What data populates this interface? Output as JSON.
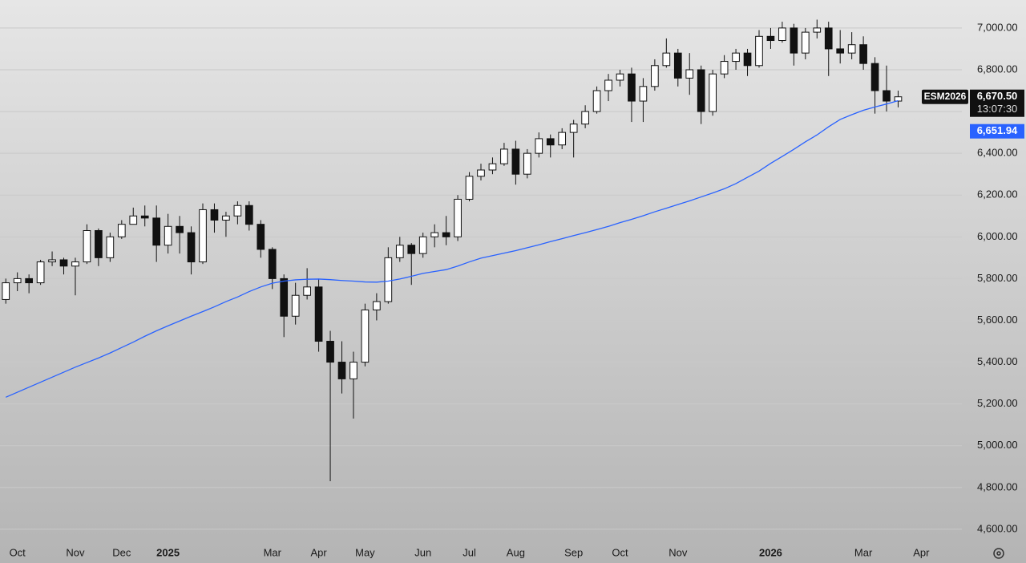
{
  "chart_data": {
    "type": "candlestick",
    "categories": [
      null,
      "Oct",
      null,
      null,
      null,
      null,
      "Nov",
      null,
      null,
      null,
      "Dec",
      null,
      null,
      null,
      "2025",
      null,
      null,
      null,
      null,
      null,
      null,
      null,
      null,
      "Mar",
      null,
      null,
      null,
      "Apr",
      null,
      null,
      null,
      "May",
      null,
      null,
      null,
      null,
      "Jun",
      null,
      null,
      null,
      "Jul",
      null,
      null,
      null,
      "Aug",
      null,
      null,
      null,
      null,
      "Sep",
      null,
      null,
      null,
      "Oct",
      null,
      null,
      null,
      null,
      "Nov",
      null,
      null,
      null,
      null,
      null,
      null,
      null,
      "2026",
      null,
      null,
      null,
      null,
      null,
      null,
      null,
      "Mar",
      null,
      null,
      null,
      null,
      "Apr",
      null,
      null,
      null
    ],
    "open": [
      5700,
      5780,
      5800,
      5780,
      5880,
      5890,
      5860,
      5880,
      6030,
      5900,
      6000,
      6060,
      6100,
      6090,
      5960,
      6050,
      6020,
      5880,
      6130,
      6080,
      6100,
      6150,
      6060,
      5940,
      5800,
      5620,
      5720,
      5760,
      5500,
      5400,
      5320,
      5400,
      5650,
      5690,
      5900,
      5960,
      5920,
      6000,
      6020,
      6000,
      6180,
      6290,
      6320,
      6350,
      6420,
      6300,
      6400,
      6470,
      6440,
      6500,
      6540,
      6600,
      6700,
      6750,
      6780,
      6650,
      6720,
      6820,
      6880,
      6760,
      6800,
      6600,
      6780,
      6840,
      6880,
      6820,
      6960,
      6940,
      7000,
      6880,
      6980,
      7000,
      6900,
      6880,
      6920,
      6830,
      6700,
      6650,
      null,
      null,
      null,
      null,
      null
    ],
    "high": [
      5800,
      5830,
      5820,
      5890,
      5930,
      5900,
      5900,
      6060,
      6040,
      6020,
      6080,
      6140,
      6150,
      6150,
      6110,
      6100,
      6050,
      6160,
      6160,
      6120,
      6170,
      6170,
      6080,
      5950,
      5820,
      5780,
      5850,
      5800,
      5550,
      5500,
      5450,
      5680,
      5730,
      5950,
      6000,
      5970,
      6020,
      6060,
      6100,
      6200,
      6310,
      6350,
      6380,
      6450,
      6460,
      6420,
      6500,
      6490,
      6520,
      6560,
      6630,
      6720,
      6780,
      6800,
      6810,
      6760,
      6850,
      6950,
      6900,
      6880,
      6820,
      6800,
      6870,
      6900,
      6900,
      6990,
      7000,
      7030,
      7020,
      7000,
      7040,
      7030,
      6990,
      6980,
      6960,
      6860,
      6820,
      6700,
      null,
      null,
      null,
      null,
      null
    ],
    "low": [
      5680,
      5740,
      5730,
      5770,
      5860,
      5820,
      5720,
      5870,
      5860,
      5880,
      5990,
      6060,
      6050,
      5880,
      5920,
      5920,
      5820,
      5870,
      6020,
      6000,
      6060,
      6030,
      5900,
      5750,
      5520,
      5580,
      5700,
      5450,
      4830,
      5250,
      5130,
      5380,
      5600,
      5680,
      5880,
      5770,
      5900,
      5950,
      5960,
      5980,
      6170,
      6270,
      6300,
      6340,
      6250,
      6280,
      6380,
      6380,
      6420,
      6380,
      6520,
      6590,
      6650,
      6720,
      6550,
      6550,
      6700,
      6810,
      6720,
      6680,
      6540,
      6580,
      6760,
      6800,
      6770,
      6810,
      6900,
      6930,
      6820,
      6850,
      6950,
      6770,
      6830,
      6850,
      6800,
      6590,
      6600,
      6620,
      null,
      null,
      null,
      null,
      null
    ],
    "close": [
      5780,
      5800,
      5780,
      5880,
      5890,
      5860,
      5880,
      6030,
      5900,
      6000,
      6060,
      6100,
      6090,
      5960,
      6050,
      6020,
      5880,
      6130,
      6080,
      6100,
      6150,
      6060,
      5940,
      5800,
      5620,
      5720,
      5760,
      5500,
      5400,
      5320,
      5400,
      5650,
      5690,
      5900,
      5960,
      5920,
      6000,
      6020,
      6000,
      6180,
      6290,
      6320,
      6350,
      6420,
      6300,
      6400,
      6470,
      6440,
      6500,
      6540,
      6600,
      6700,
      6750,
      6780,
      6650,
      6720,
      6820,
      6880,
      6760,
      6800,
      6600,
      6780,
      6840,
      6880,
      6820,
      6960,
      6940,
      7000,
      6880,
      6980,
      7000,
      6900,
      6880,
      6920,
      6830,
      6700,
      6650,
      6670.5,
      null,
      null,
      null,
      null,
      null
    ],
    "up_color": "#ffffff",
    "down_color": "#111111",
    "wick_color": "#111111",
    "overlay": {
      "type": "line",
      "color": "#2962ff",
      "values": [
        5232,
        5256,
        5280,
        5304,
        5328,
        5352,
        5376,
        5398,
        5420,
        5444,
        5470,
        5496,
        5524,
        5550,
        5574,
        5597,
        5620,
        5642,
        5665,
        5690,
        5712,
        5738,
        5760,
        5778,
        5788,
        5794,
        5797,
        5798,
        5795,
        5791,
        5788,
        5784,
        5783,
        5788,
        5798,
        5811,
        5825,
        5834,
        5843,
        5860,
        5880,
        5898,
        5910,
        5922,
        5934,
        5948,
        5962,
        5977,
        5991,
        6006,
        6020,
        6035,
        6050,
        6068,
        6084,
        6101,
        6120,
        6137,
        6155,
        6172,
        6191,
        6210,
        6230,
        6255,
        6285,
        6315,
        6352,
        6385,
        6419,
        6455,
        6488,
        6527,
        6562,
        6585,
        6606,
        6622,
        6636,
        6651.94,
        null,
        null,
        null,
        null,
        null
      ],
      "last_label": {
        "value": 6651.94,
        "label": "6,651.94"
      }
    },
    "last_price": {
      "symbol": "ESM2026",
      "value": 6670.5,
      "label": "6,670.50",
      "countdown": "13:07:30"
    },
    "ylim": [
      4542,
      7134
    ],
    "yticks": [
      {
        "value": 4600,
        "label": "4,600.00"
      },
      {
        "value": 4800,
        "label": "4,800.00"
      },
      {
        "value": 5000,
        "label": "5,000.00"
      },
      {
        "value": 5200,
        "label": "5,200.00"
      },
      {
        "value": 5400,
        "label": "5,400.00"
      },
      {
        "value": 5600,
        "label": "5,600.00"
      },
      {
        "value": 5800,
        "label": "5,800.00"
      },
      {
        "value": 6000,
        "label": "6,000.00"
      },
      {
        "value": 6200,
        "label": "6,200.00"
      },
      {
        "value": 6400,
        "label": "6,400.00"
      },
      {
        "value": 6600,
        "label": "6,600.00"
      },
      {
        "value": 6800,
        "label": "6,800.00"
      },
      {
        "value": 7000,
        "label": "7,000.00"
      }
    ],
    "grid": true
  }
}
